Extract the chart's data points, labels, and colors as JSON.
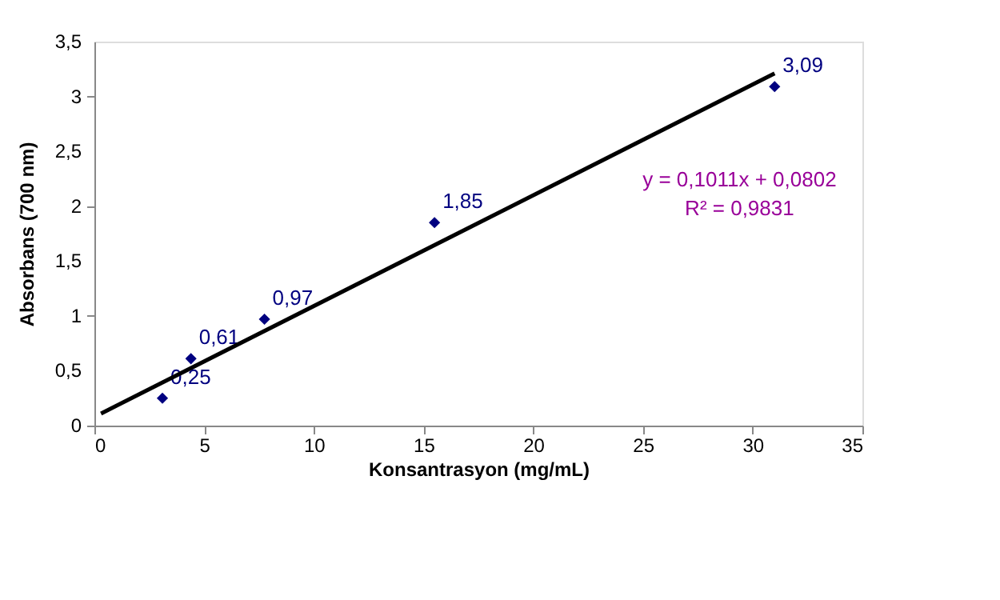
{
  "chart_data": {
    "type": "scatter",
    "xlabel": "Konsantrasyon (mg/mL)",
    "ylabel": "Absorbans (700 nm)",
    "xlim": [
      0,
      35
    ],
    "xticks": [
      0,
      5,
      10,
      15,
      20,
      25,
      30,
      35
    ],
    "ylim": [
      0,
      3.5
    ],
    "yticks": [
      0,
      {
        "value": 0.5,
        "label": "0,5"
      },
      1,
      {
        "value": 1.5,
        "label": "1,5"
      },
      2,
      {
        "value": 2.5,
        "label": "2,5"
      },
      3,
      {
        "value": 3.5,
        "label": "3,5"
      }
    ],
    "grid": false,
    "series": [
      {
        "color": "#000080",
        "marker": "diamond",
        "x": [
          3.1,
          4.4,
          7.75,
          15.5,
          31
        ],
        "values": [
          0.25,
          0.61,
          0.97,
          1.85,
          3.09
        ],
        "value_labels": [
          "0,25",
          "0,61",
          "0,97",
          "1,85",
          "3,09"
        ]
      },
      {
        "type": "line",
        "color": "#000000",
        "marker": "none",
        "line_style": "solid",
        "x": [
          0.3,
          31
        ],
        "values": [
          0.11,
          3.21
        ]
      }
    ],
    "annotations": [
      "y = 0,1011x + 0,0802",
      "R² = 0,9831"
    ]
  }
}
